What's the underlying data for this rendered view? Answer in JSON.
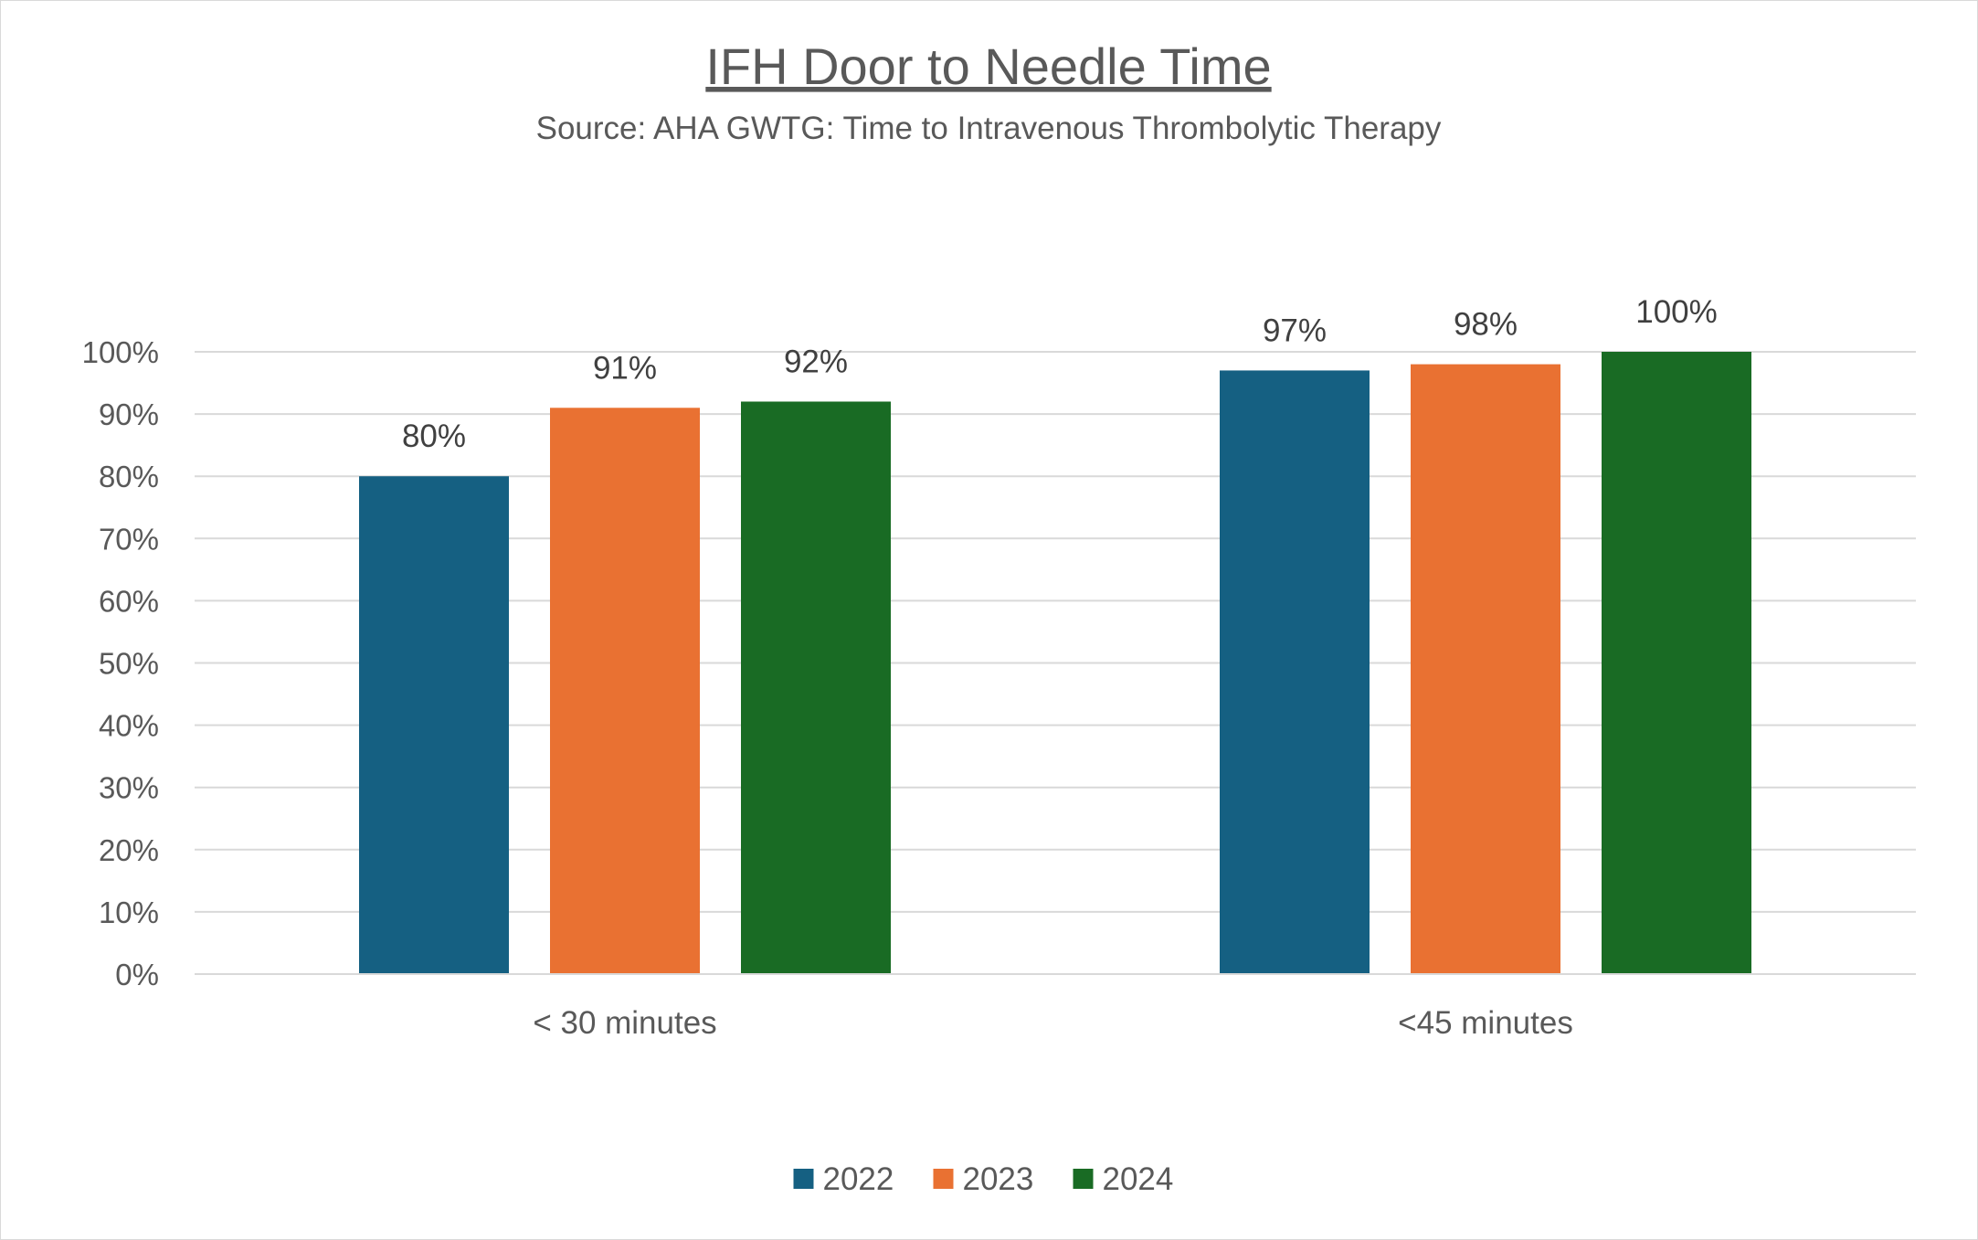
{
  "chart_data": {
    "type": "bar",
    "title": "IFH Door to Needle Time",
    "subtitle": "Source: AHA GWTG: Time to Intravenous Thrombolytic Therapy",
    "categories": [
      "< 30 minutes",
      "<45 minutes"
    ],
    "series": [
      {
        "name": "2022",
        "color": "#156082",
        "values": [
          80,
          97
        ],
        "labels": [
          "80%",
          "97%"
        ]
      },
      {
        "name": "2023",
        "color": "#E97132",
        "values": [
          91,
          98
        ],
        "labels": [
          "91%",
          "98%"
        ]
      },
      {
        "name": "2024",
        "color": "#196B24",
        "values": [
          92,
          100
        ],
        "labels": [
          "92%",
          "100%"
        ]
      }
    ],
    "ylim": [
      0,
      100
    ],
    "yticks": [
      "0%",
      "10%",
      "20%",
      "30%",
      "40%",
      "50%",
      "60%",
      "70%",
      "80%",
      "90%",
      "100%"
    ],
    "grid": true,
    "legend_position": "bottom"
  }
}
